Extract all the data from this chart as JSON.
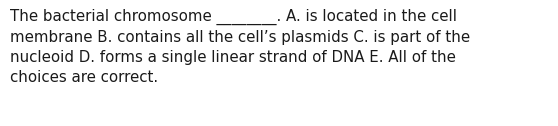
{
  "text": "The bacterial chromosome ________. A. is located in the cell\nmembrane B. contains all the cell’s plasmids C. is part of the\nnucleoid D. forms a single linear strand of DNA E. All of the\nchoices are correct.",
  "background_color": "#ffffff",
  "text_color": "#1a1a1a",
  "font_size": 10.8,
  "font_family": "DejaVu Sans",
  "fig_width": 5.58,
  "fig_height": 1.26,
  "dpi": 100
}
